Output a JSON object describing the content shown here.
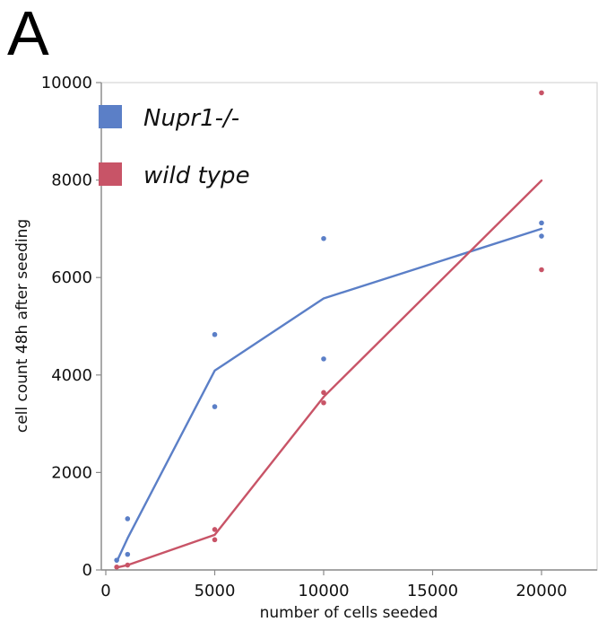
{
  "panel_label": "A",
  "chart_data": {
    "type": "scatter",
    "title": "",
    "xlabel": "number of cells seeded",
    "ylabel": "cell count 48h after seeding",
    "xlim": [
      0,
      22500
    ],
    "ylim": [
      0,
      10000
    ],
    "xticks": [
      0,
      5000,
      10000,
      15000,
      20000
    ],
    "yticks": [
      0,
      2000,
      4000,
      6000,
      8000,
      10000
    ],
    "xtick_labels": [
      "0",
      "5000",
      "10000",
      "15000",
      "20000"
    ],
    "ytick_labels": [
      "0",
      "2000",
      "4000",
      "6000",
      "8000",
      "10000"
    ],
    "grid": false,
    "legend_position": "top-left",
    "series": [
      {
        "name": "Nupr1-/-",
        "color": "#5b7fc7",
        "points": [
          [
            500,
            200
          ],
          [
            1000,
            320
          ],
          [
            1000,
            1050
          ],
          [
            5000,
            4830
          ],
          [
            5000,
            3350
          ],
          [
            10000,
            6800
          ],
          [
            10000,
            4330
          ],
          [
            20000,
            7120
          ],
          [
            20000,
            6850
          ]
        ],
        "line": [
          [
            500,
            170
          ],
          [
            1000,
            650
          ],
          [
            5000,
            4090
          ],
          [
            10000,
            5570
          ],
          [
            20000,
            7000
          ]
        ]
      },
      {
        "name": "wild type",
        "color": "#c85467",
        "points": [
          [
            500,
            60
          ],
          [
            1000,
            100
          ],
          [
            5000,
            830
          ],
          [
            5000,
            620
          ],
          [
            10000,
            3640
          ],
          [
            10000,
            3430
          ],
          [
            20000,
            9790
          ],
          [
            20000,
            6160
          ]
        ],
        "line": [
          [
            500,
            50
          ],
          [
            1000,
            100
          ],
          [
            5000,
            720
          ],
          [
            10000,
            3550
          ],
          [
            20000,
            7990
          ]
        ]
      }
    ]
  }
}
